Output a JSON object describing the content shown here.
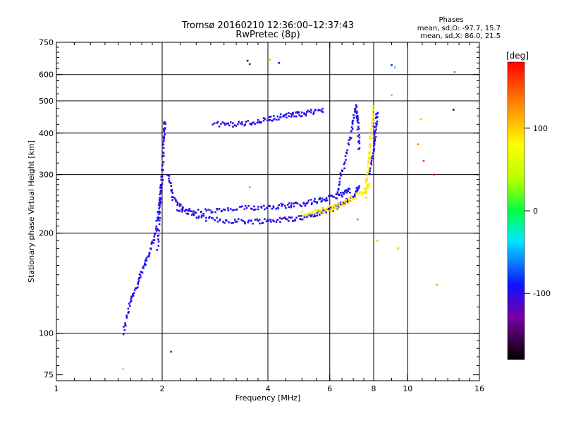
{
  "chart_data": {
    "type": "scatter",
    "title": "Tromsø 20160210 12:36:00–12:37:43",
    "subtitle": "RwPretec (8p)",
    "xlabel": "Frequency [MHz]",
    "ylabel": "Stationary phase Virtual Height [km]",
    "x_scale": "log",
    "y_scale": "log",
    "xlim": [
      1,
      16
    ],
    "ylim": [
      72,
      750
    ],
    "x_ticks": [
      1,
      2,
      4,
      6,
      8,
      10,
      16
    ],
    "y_ticks": [
      75,
      100,
      200,
      300,
      400,
      500,
      600,
      750
    ],
    "x_grid": [
      2,
      4,
      6,
      8,
      10
    ],
    "y_grid": [
      100,
      200,
      300,
      400,
      500,
      600
    ],
    "grid": true,
    "stats": {
      "title": "Phases",
      "line_o": "mean, sd,O: -97.7, 15.7",
      "line_x": "mean, sd,X:  86.0, 21.5"
    },
    "colorbar": {
      "label": "[deg]",
      "ticks": [
        "100",
        "0",
        "-100"
      ],
      "tick_values": [
        100,
        0,
        -100
      ],
      "range": [
        -180,
        180
      ]
    },
    "series": [
      {
        "mode": "O",
        "color_phase": -98,
        "segments": [
          {
            "x": [
              1.55,
              1.62,
              1.7,
              1.78,
              1.86,
              1.92,
              1.96,
              2.0
            ],
            "y": [
              100,
              125,
              140,
              160,
              180,
              205,
              240,
              290
            ]
          },
          {
            "x": [
              1.94,
              1.97,
              2.0,
              2.02,
              2.04
            ],
            "y": [
              180,
              240,
              300,
              380,
              440
            ]
          },
          {
            "x": [
              2.08,
              2.15,
              2.3,
              2.6,
              3.0,
              3.5,
              4.0,
              4.5,
              5.0,
              5.5,
              6.0,
              6.5,
              7.0,
              7.3
            ],
            "y": [
              300,
              255,
              235,
              222,
              218,
              217,
              218,
              220,
              223,
              228,
              235,
              245,
              258,
              275
            ]
          },
          {
            "x": [
              2.2,
              2.6,
              3.0,
              3.5,
              4.0,
              4.5,
              5.0,
              5.5,
              6.0,
              6.5,
              6.9
            ],
            "y": [
              235,
              232,
              234,
              238,
              240,
              242,
              245,
              250,
              255,
              262,
              270
            ]
          },
          {
            "x": [
              2.8,
              3.2,
              3.6,
              4.0,
              4.4,
              4.8,
              5.2,
              5.8
            ],
            "y": [
              425,
              425,
              430,
              440,
              450,
              455,
              460,
              470
            ]
          },
          {
            "x": [
              6.3,
              6.6,
              6.9,
              7.1,
              7.2,
              7.3
            ],
            "y": [
              270,
              320,
              400,
              480,
              440,
              350
            ]
          },
          {
            "x": [
              7.8,
              8.0,
              8.1,
              8.2
            ],
            "y": [
              300,
              360,
              410,
              460
            ]
          }
        ]
      },
      {
        "mode": "X",
        "color_phase": 86,
        "segments": [
          {
            "x": [
              5.0,
              5.5,
              6.0,
              6.5,
              7.0,
              7.5,
              7.8
            ],
            "y": [
              228,
              232,
              237,
              245,
              255,
              268,
              280
            ]
          },
          {
            "x": [
              7.6,
              7.7,
              7.8,
              7.9,
              8.0
            ],
            "y": [
              260,
              300,
              360,
              420,
              480
            ]
          }
        ]
      },
      {
        "mode": "scatter",
        "color_phase": 0,
        "points": [
          [
            3.5,
            660,
            -150
          ],
          [
            3.55,
            645,
            -120
          ],
          [
            4.3,
            650,
            -100
          ],
          [
            4.05,
            665,
            110
          ],
          [
            9.0,
            640,
            -100
          ],
          [
            9.0,
            520,
            120
          ],
          [
            10.9,
            440,
            110
          ],
          [
            11.9,
            300,
            170
          ],
          [
            11.1,
            330,
            160
          ],
          [
            12.1,
            140,
            120
          ],
          [
            13.5,
            470,
            -160
          ],
          [
            10.7,
            370,
            130
          ],
          [
            9.2,
            630,
            -40
          ],
          [
            1.55,
            78,
            110
          ],
          [
            2.12,
            88,
            -80
          ],
          [
            8.2,
            190,
            110
          ],
          [
            9.4,
            180,
            110
          ],
          [
            3.55,
            275,
            120
          ],
          [
            7.2,
            220,
            140
          ],
          [
            13.6,
            610,
            140
          ]
        ]
      }
    ]
  }
}
